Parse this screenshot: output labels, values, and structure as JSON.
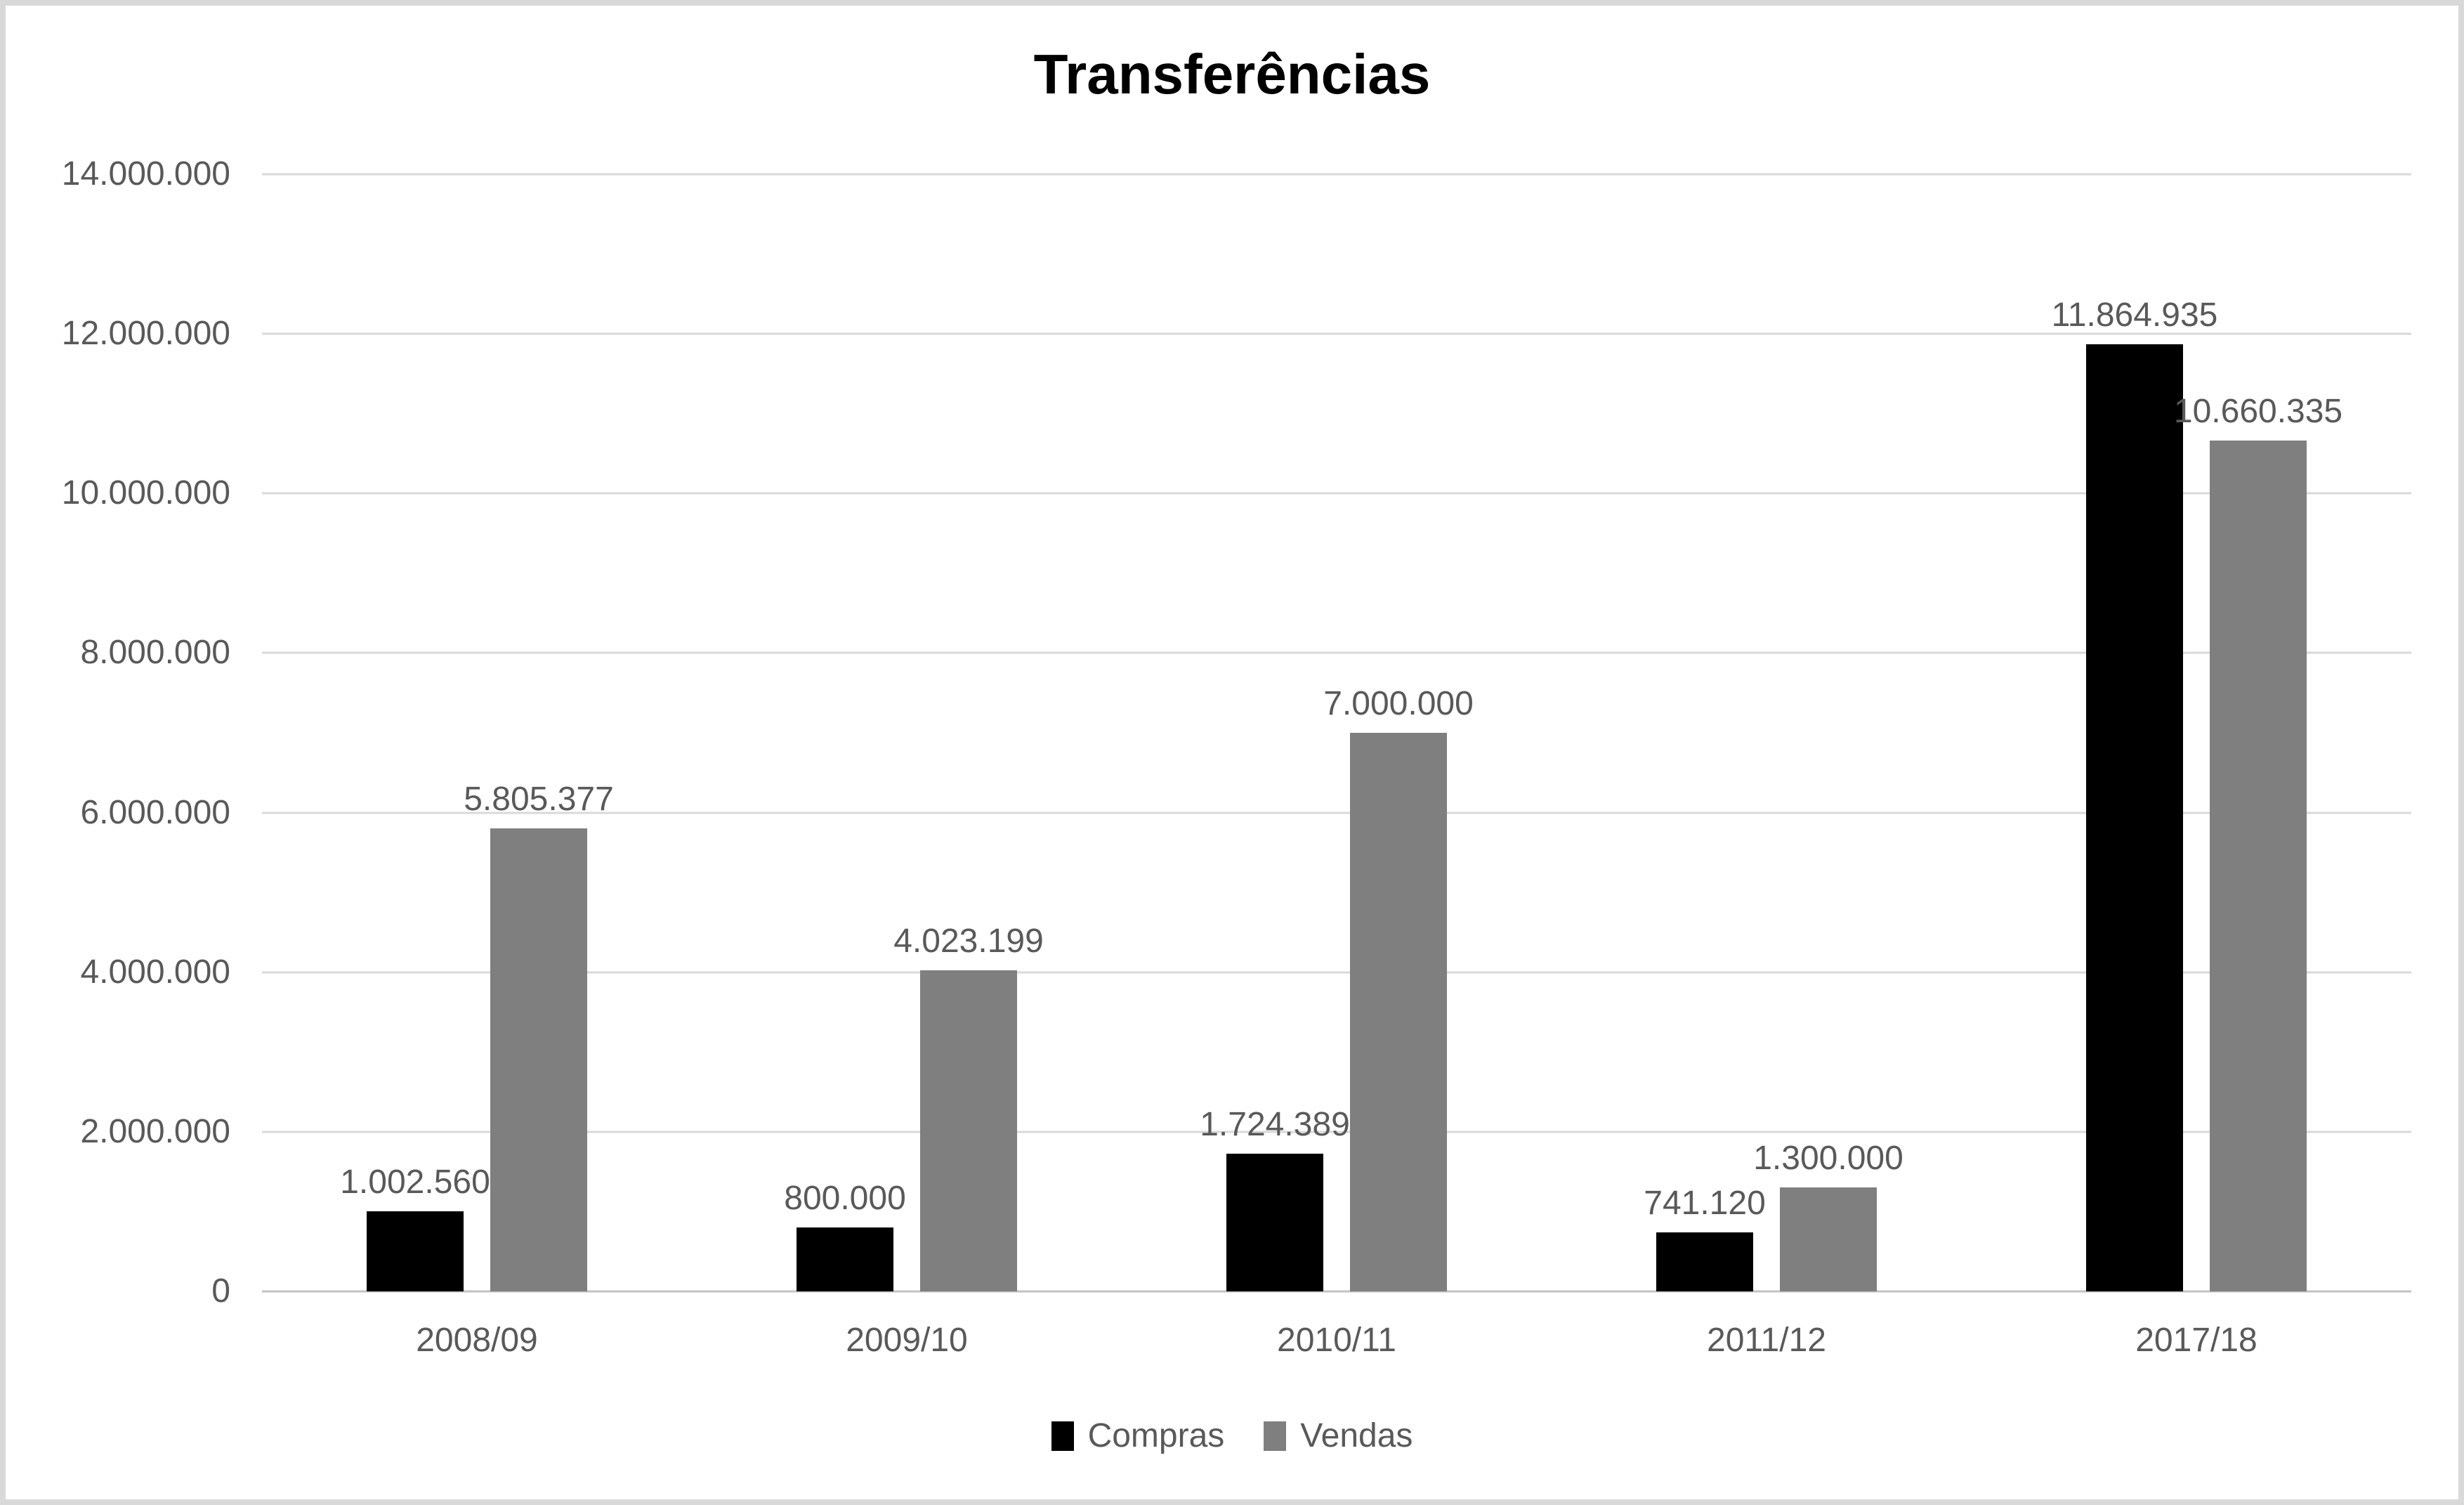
{
  "page": {
    "background_color": "#ffffff",
    "border_color": "#d9d9d9"
  },
  "chart_data": {
    "type": "bar",
    "title": "Transferências",
    "xlabel": "",
    "ylabel": "",
    "categories": [
      "2008/09",
      "2009/10",
      "2010/11",
      "2011/12",
      "2017/18"
    ],
    "series": [
      {
        "name": "Compras",
        "color": "#000000",
        "values": [
          1002560,
          800000,
          1724389,
          741120,
          11864935
        ],
        "labels": [
          "1.002.560",
          "800.000",
          "1.724.389",
          "741.120",
          "11.864.935"
        ]
      },
      {
        "name": "Vendas",
        "color": "#7f7f7f",
        "values": [
          5805377,
          4023199,
          7000000,
          1300000,
          10660335
        ],
        "labels": [
          "5.805.377",
          "4.023.199",
          "7.000.000",
          "1.300.000",
          "10.660.335"
        ]
      }
    ],
    "ylim": [
      0,
      14000000
    ],
    "ytick_step": 2000000,
    "ytick_labels": [
      "0",
      "2.000.000",
      "4.000.000",
      "6.000.000",
      "8.000.000",
      "10.000.000",
      "12.000.000",
      "14.000.000"
    ],
    "grid": true,
    "gridline_color": "#d9d9d9",
    "axis_label_color": "#595959",
    "data_label_color": "#595959",
    "legend_position": "bottom",
    "legend": [
      "Compras",
      "Vendas"
    ]
  }
}
